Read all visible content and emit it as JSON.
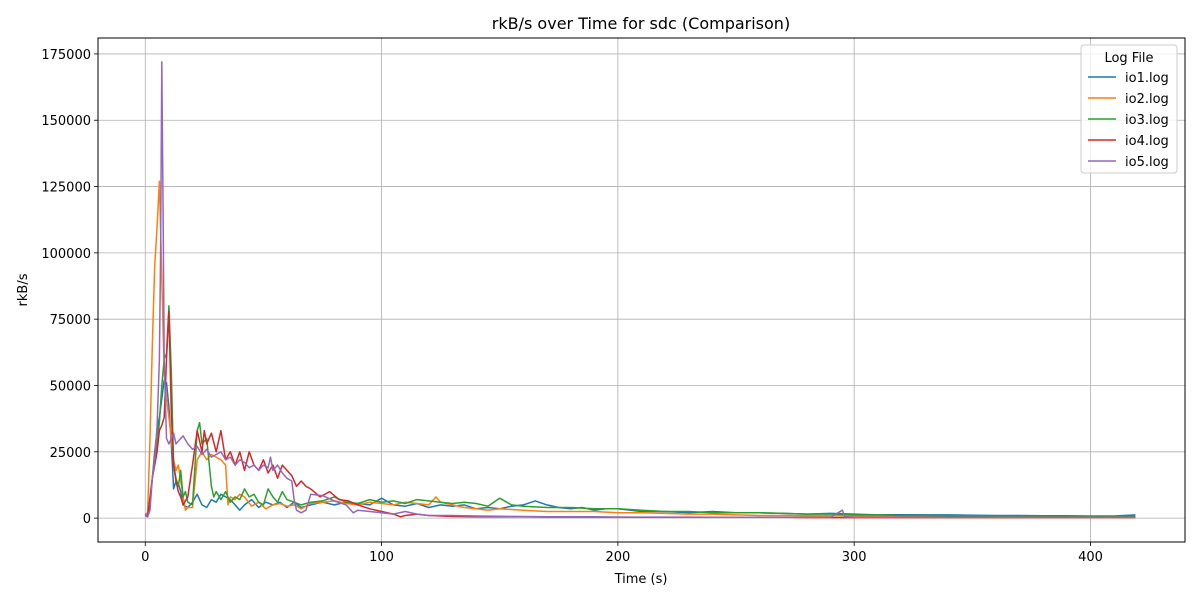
{
  "chart_data": {
    "type": "line",
    "title": "rkB/s over Time for sdc (Comparison)",
    "xlabel": "Time (s)",
    "ylabel": "rkB/s",
    "xlim": [
      -20,
      440
    ],
    "ylim": [
      -9000,
      181000
    ],
    "xticks": [
      0,
      100,
      200,
      300,
      400
    ],
    "yticks": [
      0,
      25000,
      50000,
      75000,
      100000,
      125000,
      150000,
      175000
    ],
    "grid": true,
    "legend": {
      "title": "Log File",
      "placement": "top-right"
    },
    "series": [
      {
        "name": "io1.log",
        "color": "#1f77b4",
        "x": [
          0,
          1,
          2,
          3,
          4,
          5,
          6,
          7,
          8,
          9,
          10,
          11,
          12,
          13,
          14,
          15,
          16,
          18,
          20,
          22,
          24,
          26,
          28,
          30,
          32,
          34,
          36,
          38,
          40,
          42,
          45,
          48,
          51,
          54,
          57,
          60,
          63,
          66,
          70,
          75,
          80,
          85,
          90,
          95,
          100,
          105,
          110,
          115,
          120,
          125,
          130,
          135,
          140,
          145,
          150,
          155,
          160,
          165,
          170,
          175,
          180,
          185,
          190,
          195,
          200,
          210,
          220,
          230,
          240,
          250,
          260,
          270,
          280,
          290,
          300,
          310,
          320,
          330,
          340,
          350,
          360,
          370,
          380,
          390,
          400,
          410,
          419
        ],
        "y": [
          1500,
          800,
          5000,
          15000,
          25000,
          33000,
          38000,
          45000,
          52000,
          51000,
          42000,
          28000,
          11000,
          14000,
          13000,
          10000,
          5000,
          4000,
          6000,
          9000,
          5000,
          4000,
          7000,
          6000,
          9000,
          8000,
          7000,
          5000,
          3000,
          5000,
          7000,
          4000,
          6000,
          5000,
          6000,
          4000,
          6000,
          4000,
          5000,
          6000,
          5000,
          6000,
          5500,
          5000,
          7500,
          5000,
          4500,
          5500,
          4000,
          5000,
          4500,
          5000,
          3500,
          4000,
          3500,
          4500,
          5000,
          6500,
          5000,
          4000,
          3500,
          4000,
          3000,
          3500,
          3500,
          2500,
          2500,
          2000,
          2500,
          2000,
          2000,
          1800,
          1500,
          1800,
          1500,
          1200,
          1300,
          1200,
          1200,
          1100,
          1000,
          1000,
          900,
          900,
          800,
          800,
          1200
        ]
      },
      {
        "name": "io2.log",
        "color": "#ff7f0e",
        "x": [
          0,
          1,
          2,
          3,
          4,
          5,
          6,
          7,
          8,
          9,
          10,
          11,
          12,
          13,
          14,
          15,
          16,
          17,
          18,
          20,
          22,
          24,
          26,
          28,
          30,
          32,
          34,
          35,
          36,
          38,
          40,
          42,
          45,
          48,
          51,
          54,
          57,
          60,
          63,
          66,
          70,
          75,
          80,
          85,
          90,
          95,
          100,
          105,
          110,
          115,
          120,
          123,
          125,
          130,
          135,
          140,
          145,
          150,
          160,
          170,
          180,
          190,
          200,
          210,
          220,
          230,
          240,
          250,
          260,
          270,
          280,
          290,
          300,
          310,
          320,
          330,
          340,
          350,
          360,
          370,
          380,
          390,
          400,
          410,
          419
        ],
        "y": [
          1500,
          2000,
          30000,
          65000,
          95000,
          110000,
          127000,
          90000,
          55000,
          45000,
          38000,
          30000,
          22000,
          18000,
          20000,
          14000,
          8000,
          3000,
          4000,
          4000,
          22000,
          25000,
          22000,
          24000,
          23000,
          22000,
          20000,
          5000,
          8000,
          7000,
          9000,
          8000,
          4500,
          6000,
          3500,
          5000,
          5500,
          4500,
          5000,
          3500,
          5500,
          6000,
          6500,
          5500,
          5000,
          6000,
          5500,
          5000,
          6000,
          5500,
          5000,
          8000,
          6000,
          5000,
          4000,
          3500,
          3000,
          3500,
          3000,
          2500,
          2500,
          2500,
          2000,
          2000,
          1800,
          1500,
          1500,
          1200,
          1000,
          1000,
          900,
          900,
          800,
          800,
          700,
          700,
          600,
          600,
          600,
          500,
          500,
          500,
          500,
          500,
          500
        ]
      },
      {
        "name": "io3.log",
        "color": "#2ca02c",
        "x": [
          0,
          1,
          2,
          3,
          4,
          5,
          6,
          7,
          8,
          9,
          10,
          11,
          12,
          13,
          14,
          15,
          16,
          17,
          18,
          20,
          22,
          23,
          24,
          26,
          28,
          29,
          30,
          32,
          34,
          36,
          38,
          40,
          42,
          44,
          46,
          48,
          50,
          52,
          54,
          56,
          58,
          60,
          63,
          66,
          70,
          75,
          80,
          85,
          90,
          95,
          100,
          105,
          110,
          115,
          120,
          125,
          130,
          135,
          140,
          145,
          150,
          155,
          160,
          170,
          180,
          190,
          200,
          210,
          220,
          230,
          240,
          250,
          260,
          270,
          280,
          290,
          300,
          310,
          320,
          330,
          340,
          350,
          360,
          370,
          380,
          390,
          400,
          410,
          419
        ],
        "y": [
          1500,
          500,
          6000,
          15000,
          22000,
          28000,
          36000,
          50000,
          60000,
          62000,
          80000,
          55000,
          20000,
          15000,
          12000,
          18000,
          8000,
          10000,
          6000,
          5000,
          33000,
          36000,
          28000,
          30000,
          12000,
          8000,
          10000,
          7000,
          10000,
          6000,
          8000,
          7000,
          11000,
          8000,
          9000,
          6000,
          5000,
          11000,
          8000,
          6000,
          10000,
          7000,
          6000,
          5000,
          6000,
          6500,
          8000,
          6000,
          5500,
          7000,
          6000,
          6500,
          5500,
          7000,
          6500,
          6000,
          5500,
          6000,
          5500,
          4500,
          7500,
          5000,
          4500,
          4000,
          4000,
          3500,
          3500,
          3000,
          2500,
          2500,
          2000,
          2000,
          2000,
          1800,
          1500,
          1500,
          1200,
          1200,
          1000,
          1000,
          900,
          900,
          800,
          800,
          700,
          700,
          700,
          700,
          700
        ]
      },
      {
        "name": "io4.log",
        "color": "#d62728",
        "x": [
          0,
          1,
          2,
          3,
          4,
          5,
          6,
          7,
          8,
          9,
          10,
          11,
          12,
          13,
          14,
          15,
          16,
          18,
          20,
          22,
          24,
          25,
          26,
          28,
          30,
          32,
          34,
          36,
          38,
          40,
          42,
          44,
          46,
          48,
          50,
          52,
          54,
          56,
          58,
          60,
          62,
          64,
          66,
          68,
          70,
          74,
          78,
          82,
          86,
          90,
          95,
          100,
          105,
          108,
          110,
          115,
          120,
          125,
          130,
          140,
          150,
          160,
          170,
          180,
          190,
          200,
          210,
          220,
          230,
          240,
          250,
          260,
          270,
          280,
          290,
          300,
          310,
          320,
          330,
          340,
          350,
          360,
          370,
          380,
          390,
          400,
          410,
          419
        ],
        "y": [
          1000,
          500,
          8000,
          15000,
          20000,
          25000,
          33000,
          35000,
          38000,
          60000,
          78000,
          40000,
          20000,
          14000,
          10000,
          8000,
          5000,
          8000,
          20000,
          33000,
          25000,
          33000,
          28000,
          32000,
          25000,
          33000,
          22000,
          25000,
          20000,
          25000,
          18000,
          25000,
          20000,
          18000,
          22000,
          17000,
          20000,
          15000,
          20000,
          18000,
          16000,
          12000,
          14000,
          12000,
          11000,
          8000,
          10000,
          7000,
          6500,
          5000,
          3500,
          2500,
          1500,
          500,
          1000,
          1500,
          1000,
          800,
          600,
          500,
          500,
          500,
          400,
          400,
          400,
          400,
          300,
          300,
          300,
          300,
          300,
          300,
          300,
          200,
          200,
          200,
          200,
          200,
          200,
          200,
          200,
          200,
          200,
          200,
          200,
          200,
          200,
          200
        ]
      },
      {
        "name": "io5.log",
        "color": "#9467bd",
        "x": [
          0,
          1,
          2,
          3,
          4,
          5,
          6,
          6.5,
          7,
          7.5,
          8,
          9,
          10,
          11,
          12,
          13,
          14,
          15,
          16,
          18,
          20,
          22,
          24,
          26,
          28,
          30,
          32,
          34,
          36,
          38,
          40,
          42,
          44,
          46,
          48,
          50,
          52,
          53,
          54,
          56,
          58,
          60,
          62,
          63,
          64,
          66,
          68,
          70,
          75,
          80,
          85,
          88,
          90,
          95,
          100,
          105,
          110,
          115,
          120,
          130,
          140,
          150,
          160,
          170,
          180,
          190,
          200,
          210,
          220,
          230,
          240,
          250,
          260,
          270,
          280,
          290,
          295,
          296,
          300,
          310,
          320,
          330,
          340,
          350,
          360,
          370,
          380,
          390,
          400,
          410,
          419
        ],
        "y": [
          1500,
          500,
          3000,
          15000,
          22000,
          35000,
          60000,
          100000,
          172000,
          120000,
          60000,
          30000,
          28000,
          30000,
          32000,
          28000,
          29000,
          30000,
          31000,
          28000,
          26000,
          27000,
          24000,
          26000,
          23000,
          24000,
          25000,
          22000,
          23000,
          20000,
          22000,
          21000,
          19000,
          20000,
          18000,
          20000,
          19000,
          23000,
          18000,
          20000,
          17000,
          15000,
          14000,
          7000,
          3000,
          2000,
          3000,
          9000,
          8500,
          6500,
          5000,
          2000,
          3000,
          2500,
          2000,
          1500,
          2500,
          1500,
          1000,
          1000,
          800,
          700,
          600,
          500,
          500,
          500,
          400,
          400,
          400,
          400,
          300,
          300,
          300,
          300,
          300,
          300,
          3000,
          500,
          300,
          300,
          300,
          300,
          300,
          300,
          300,
          300,
          300,
          300,
          300,
          300,
          300
        ]
      }
    ]
  }
}
